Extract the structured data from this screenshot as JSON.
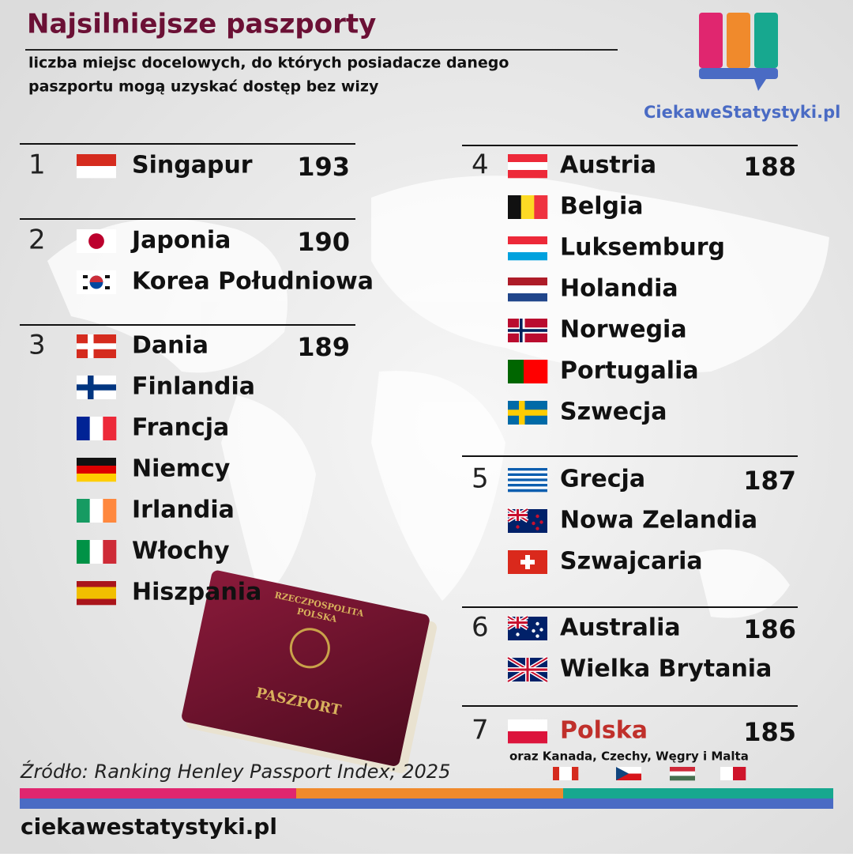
{
  "header": {
    "title": "Najsilniejsze paszporty",
    "subtitle_lines": [
      "liczba miejsc docelowych, do których posiadacze danego",
      "paszportu mogą uzyskać dostęp bez wizy"
    ],
    "brand": "CiekaweStatystyki.pl"
  },
  "ranks": [
    {
      "rank": 1,
      "score": 193,
      "countries": [
        "Singapur"
      ]
    },
    {
      "rank": 2,
      "score": 190,
      "countries": [
        "Japonia",
        "Korea Południowa"
      ]
    },
    {
      "rank": 3,
      "score": 189,
      "countries": [
        "Dania",
        "Finlandia",
        "Francja",
        "Niemcy",
        "Irlandia",
        "Włochy",
        "Hiszpania"
      ]
    },
    {
      "rank": 4,
      "score": 188,
      "countries": [
        "Austria",
        "Belgia",
        "Luksemburg",
        "Holandia",
        "Norwegia",
        "Portugalia",
        "Szwecja"
      ]
    },
    {
      "rank": 5,
      "score": 187,
      "countries": [
        "Grecja",
        "Nowa Zelandia",
        "Szwajcaria"
      ]
    },
    {
      "rank": 6,
      "score": 186,
      "countries": [
        "Australia",
        "Wielka Brytania"
      ]
    },
    {
      "rank": 7,
      "score": 185,
      "countries": [
        "Polska"
      ],
      "note": "oraz Kanada, Czechy, Węgry i Malta"
    }
  ],
  "passport": {
    "line1": "RZECZPOSPOLITA",
    "line2": "POLSKA",
    "label": "PASZPORT"
  },
  "footer": {
    "source": "Źródło: Ranking Henley Passport Index; 2025",
    "site": "ciekawestatystyki.pl"
  }
}
